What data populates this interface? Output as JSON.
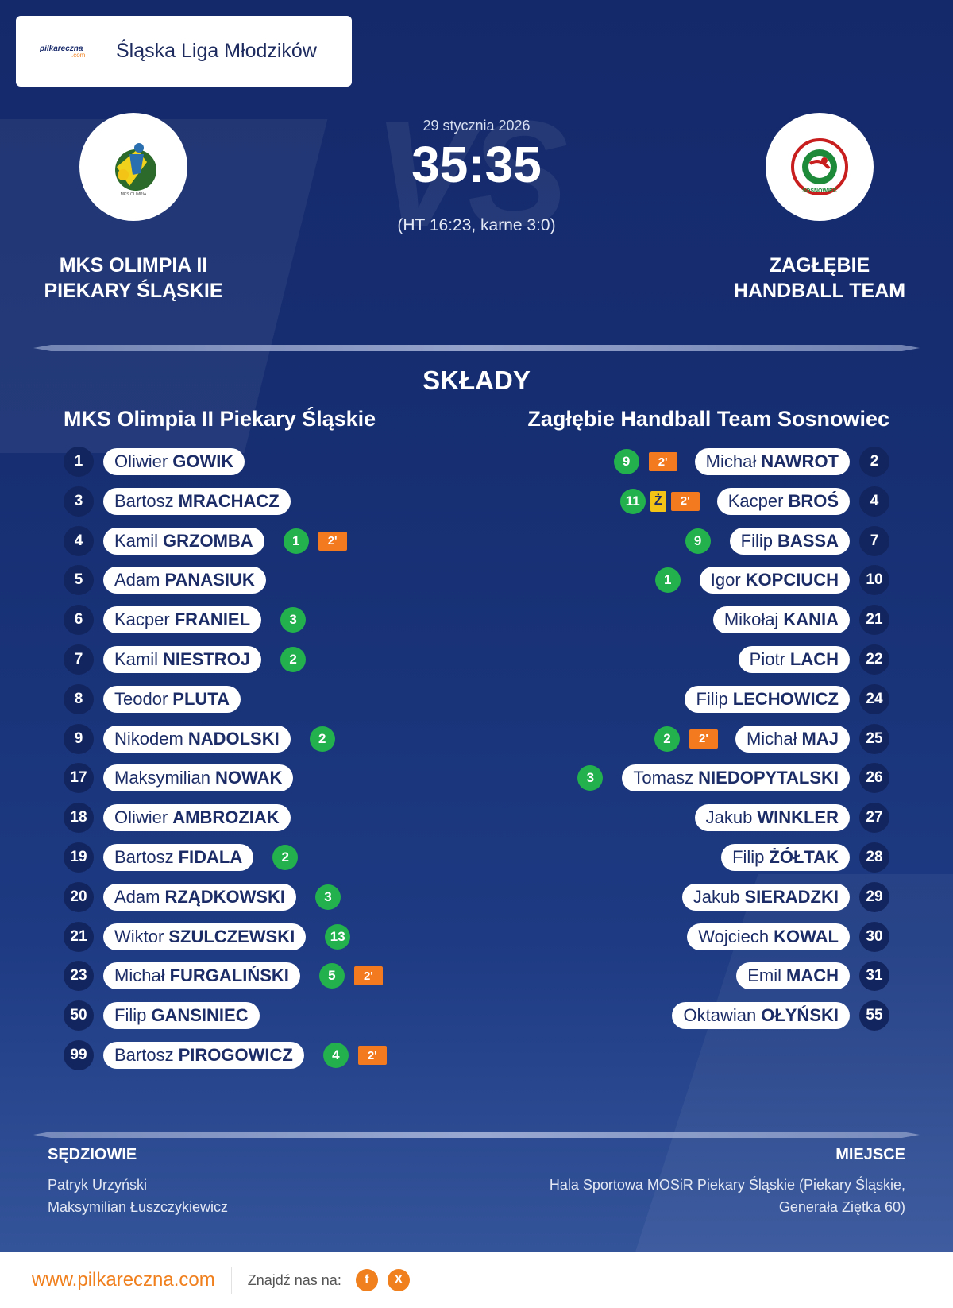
{
  "league": {
    "logo_text": "pilkareczna",
    "logo_sub": ".com",
    "name": "Śląska Liga Młodzików"
  },
  "match": {
    "date": "29 stycznia 2026",
    "score": "35:35",
    "detail": "(HT 16:23, karne 3:0)",
    "vs_watermark": "VS"
  },
  "home": {
    "name_line1": "MKS OLIMPIA II",
    "name_line2": "PIEKARY ŚLĄSKIE",
    "squad_title": "MKS Olimpia II Piekary Śląskie"
  },
  "away": {
    "name_line1": "ZAGŁĘBIE",
    "name_line2": "HANDBALL TEAM",
    "squad_title": "Zagłębie Handball Team Sosnowiec"
  },
  "lineups_title": "SKŁADY",
  "home_players": [
    {
      "number": "1",
      "first": "Oliwier",
      "last": "GOWIK",
      "goals": "",
      "susp": ""
    },
    {
      "number": "3",
      "first": "Bartosz",
      "last": "MRACHACZ",
      "goals": "",
      "susp": ""
    },
    {
      "number": "4",
      "first": "Kamil",
      "last": "GRZOMBA",
      "goals": "1",
      "susp": "2'"
    },
    {
      "number": "5",
      "first": "Adam",
      "last": "PANASIUK",
      "goals": "",
      "susp": ""
    },
    {
      "number": "6",
      "first": "Kacper",
      "last": "FRANIEL",
      "goals": "3",
      "susp": ""
    },
    {
      "number": "7",
      "first": "Kamil",
      "last": "NIESTROJ",
      "goals": "2",
      "susp": ""
    },
    {
      "number": "8",
      "first": "Teodor",
      "last": "PLUTA",
      "goals": "",
      "susp": ""
    },
    {
      "number": "9",
      "first": "Nikodem",
      "last": "NADOLSKI",
      "goals": "2",
      "susp": ""
    },
    {
      "number": "17",
      "first": "Maksymilian",
      "last": "NOWAK",
      "goals": "",
      "susp": ""
    },
    {
      "number": "18",
      "first": "Oliwier",
      "last": "AMBROZIAK",
      "goals": "",
      "susp": ""
    },
    {
      "number": "19",
      "first": "Bartosz",
      "last": "FIDALA",
      "goals": "2",
      "susp": ""
    },
    {
      "number": "20",
      "first": "Adam",
      "last": "RZĄDKOWSKI",
      "goals": "3",
      "susp": ""
    },
    {
      "number": "21",
      "first": "Wiktor",
      "last": "SZULCZEWSKI",
      "goals": "13",
      "susp": ""
    },
    {
      "number": "23",
      "first": "Michał",
      "last": "FURGALIŃSKI",
      "goals": "5",
      "susp": "2'"
    },
    {
      "number": "50",
      "first": "Filip",
      "last": "GANSINIEC",
      "goals": "",
      "susp": ""
    },
    {
      "number": "99",
      "first": "Bartosz",
      "last": "PIROGOWICZ",
      "goals": "4",
      "susp": "2'"
    }
  ],
  "away_players": [
    {
      "number": "2",
      "first": "Michał",
      "last": "NAWROT",
      "goals": "9",
      "yellow": "",
      "susp": "2'"
    },
    {
      "number": "4",
      "first": "Kacper",
      "last": "BROŚ",
      "goals": "11",
      "yellow": "Ż",
      "susp": "2'"
    },
    {
      "number": "7",
      "first": "Filip",
      "last": "BASSA",
      "goals": "9",
      "yellow": "",
      "susp": ""
    },
    {
      "number": "10",
      "first": "Igor",
      "last": "KOPCIUCH",
      "goals": "1",
      "yellow": "",
      "susp": ""
    },
    {
      "number": "21",
      "first": "Mikołaj",
      "last": "KANIA",
      "goals": "",
      "yellow": "",
      "susp": ""
    },
    {
      "number": "22",
      "first": "Piotr",
      "last": "LACH",
      "goals": "",
      "yellow": "",
      "susp": ""
    },
    {
      "number": "24",
      "first": "Filip",
      "last": "LECHOWICZ",
      "goals": "",
      "yellow": "",
      "susp": ""
    },
    {
      "number": "25",
      "first": "Michał",
      "last": "MAJ",
      "goals": "2",
      "yellow": "",
      "susp": "2'"
    },
    {
      "number": "26",
      "first": "Tomasz",
      "last": "NIEDOPYTALSKI",
      "goals": "3",
      "yellow": "",
      "susp": ""
    },
    {
      "number": "27",
      "first": "Jakub",
      "last": "WINKLER",
      "goals": "",
      "yellow": "",
      "susp": ""
    },
    {
      "number": "28",
      "first": "Filip",
      "last": "ŻÓŁTAK",
      "goals": "",
      "yellow": "",
      "susp": ""
    },
    {
      "number": "29",
      "first": "Jakub",
      "last": "SIERADZKI",
      "goals": "",
      "yellow": "",
      "susp": ""
    },
    {
      "number": "30",
      "first": "Wojciech",
      "last": "KOWAL",
      "goals": "",
      "yellow": "",
      "susp": ""
    },
    {
      "number": "31",
      "first": "Emil",
      "last": "MACH",
      "goals": "",
      "yellow": "",
      "susp": ""
    },
    {
      "number": "55",
      "first": "Oktawian",
      "last": "OŁYŃSKI",
      "goals": "",
      "yellow": "",
      "susp": ""
    }
  ],
  "referees": {
    "title": "SĘDZIOWIE",
    "names": [
      "Patryk Urzyński",
      "Maksymilian Łuszczykiewicz"
    ]
  },
  "venue": {
    "title": "MIEJSCE",
    "line1": "Hala Sportowa MOSiR Piekary Śląskie (Piekary Śląskie,",
    "line2": "Generała Ziętka 60)"
  },
  "footer": {
    "url": "www.pilkareczna.com",
    "find_us": "Znajdź nas na:",
    "social": [
      "f",
      "X"
    ]
  },
  "colors": {
    "background": "#172f73",
    "goal_badge": "#22b14c",
    "suspension_badge": "#f47a20",
    "yellow_card": "#f3c316",
    "number_badge": "#13255e",
    "brand_orange": "#f07f1d"
  },
  "icons": {
    "league_logo": "pilkareczna-logo",
    "home_crest": "olimpia-handball-crest",
    "away_crest": "zaglebie-handball-crest",
    "facebook": "facebook-icon",
    "x": "x-icon"
  }
}
